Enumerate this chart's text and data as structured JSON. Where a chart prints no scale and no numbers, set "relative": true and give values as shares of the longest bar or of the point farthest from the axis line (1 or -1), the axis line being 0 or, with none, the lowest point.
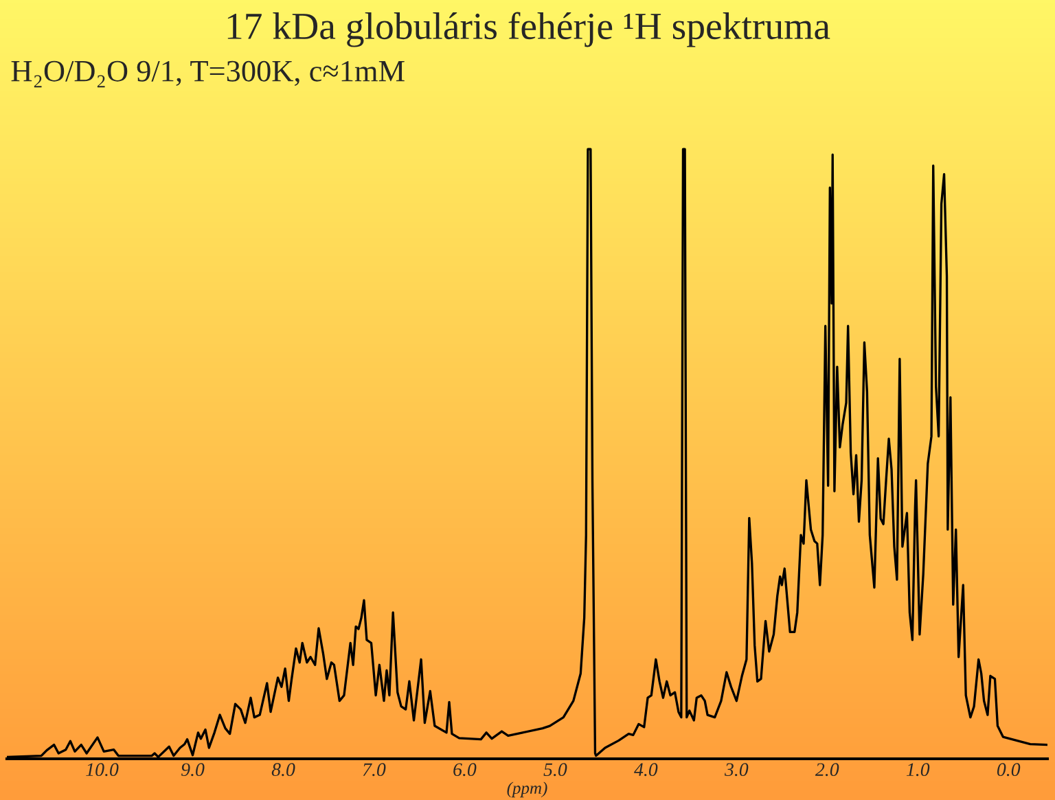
{
  "chart_data": {
    "type": "line",
    "title": "17 kDa globuláris fehérje ¹H spektruma",
    "subtitle": "H₂O/D₂O 9/1, T=300K, c≈1mM",
    "xlabel": "(ppm)",
    "relative": true,
    "grid": false,
    "legend": false,
    "marker": "none",
    "line_style": "solid",
    "tick_labels": "x",
    "xlim": [
      11.05,
      -0.43
    ],
    "xticks": [
      {
        "value": 10,
        "label": "10.0"
      },
      {
        "value": 9,
        "label": "9.0"
      },
      {
        "value": 8,
        "label": "8.0"
      },
      {
        "value": 7,
        "label": "7.0"
      },
      {
        "value": 6,
        "label": "6.0"
      },
      {
        "value": 5,
        "label": "5.0"
      },
      {
        "value": 4,
        "label": "4.0"
      },
      {
        "value": 3,
        "label": "3.0"
      },
      {
        "value": 2,
        "label": "2.0"
      },
      {
        "value": 1,
        "label": "1.0"
      },
      {
        "value": 0,
        "label": "0.0"
      }
    ],
    "series": [
      {
        "color": "#000000",
        "x": [
          11.05,
          10.67,
          10.61,
          10.53,
          10.48,
          10.4,
          10.35,
          10.3,
          10.23,
          10.17,
          10.05,
          9.98,
          9.87,
          9.82,
          9.45,
          9.42,
          9.38,
          9.26,
          9.21,
          9.14,
          9.09,
          9.06,
          9.0,
          8.94,
          8.91,
          8.86,
          8.82,
          8.76,
          8.7,
          8.64,
          8.59,
          8.53,
          8.47,
          8.42,
          8.36,
          8.32,
          8.26,
          8.18,
          8.14,
          8.06,
          8.02,
          7.98,
          7.94,
          7.91,
          7.86,
          7.82,
          7.79,
          7.74,
          7.7,
          7.65,
          7.61,
          7.56,
          7.52,
          7.47,
          7.44,
          7.38,
          7.33,
          7.26,
          7.23,
          7.2,
          7.17,
          7.14,
          7.11,
          7.08,
          7.03,
          6.98,
          6.94,
          6.89,
          6.86,
          6.83,
          6.79,
          6.74,
          6.7,
          6.65,
          6.61,
          6.56,
          6.48,
          6.44,
          6.38,
          6.33,
          6.2,
          6.17,
          6.14,
          6.06,
          5.82,
          5.76,
          5.7,
          5.59,
          5.52,
          5.36,
          5.14,
          5.06,
          4.91,
          4.8,
          4.72,
          4.68,
          4.66,
          4.64,
          4.61,
          4.59,
          4.56,
          4.55,
          4.45,
          4.3,
          4.19,
          4.14,
          4.08,
          4.02,
          3.98,
          3.94,
          3.89,
          3.85,
          3.81,
          3.77,
          3.73,
          3.68,
          3.64,
          3.61,
          3.59,
          3.57,
          3.55,
          3.52,
          3.47,
          3.44,
          3.39,
          3.35,
          3.32,
          3.24,
          3.17,
          3.11,
          3.06,
          3.0,
          2.94,
          2.89,
          2.86,
          2.83,
          2.8,
          2.77,
          2.73,
          2.68,
          2.64,
          2.59,
          2.55,
          2.52,
          2.5,
          2.47,
          2.41,
          2.36,
          2.33,
          2.29,
          2.26,
          2.23,
          2.18,
          2.14,
          2.11,
          2.08,
          2.05,
          2.02,
          1.99,
          1.97,
          1.95,
          1.94,
          1.92,
          1.89,
          1.86,
          1.83,
          1.79,
          1.77,
          1.74,
          1.71,
          1.68,
          1.65,
          1.62,
          1.59,
          1.56,
          1.53,
          1.48,
          1.44,
          1.41,
          1.38,
          1.35,
          1.32,
          1.29,
          1.26,
          1.23,
          1.2,
          1.17,
          1.12,
          1.09,
          1.06,
          1.03,
          1.02,
          0.98,
          0.94,
          0.89,
          0.85,
          0.83,
          0.8,
          0.77,
          0.74,
          0.71,
          0.68,
          0.67,
          0.64,
          0.61,
          0.58,
          0.55,
          0.5,
          0.47,
          0.42,
          0.38,
          0.33,
          0.3,
          0.27,
          0.23,
          0.2,
          0.15,
          0.12,
          0.06,
          -0.09,
          -0.24,
          -0.43
        ],
        "values": [
          0.003,
          0.005,
          0.014,
          0.023,
          0.009,
          0.015,
          0.029,
          0.012,
          0.023,
          0.009,
          0.035,
          0.012,
          0.015,
          0.005,
          0.005,
          0.009,
          0.003,
          0.02,
          0.005,
          0.018,
          0.024,
          0.032,
          0.006,
          0.043,
          0.033,
          0.048,
          0.018,
          0.043,
          0.072,
          0.05,
          0.041,
          0.09,
          0.081,
          0.059,
          0.1,
          0.068,
          0.072,
          0.124,
          0.077,
          0.133,
          0.118,
          0.148,
          0.095,
          0.129,
          0.181,
          0.158,
          0.19,
          0.158,
          0.167,
          0.154,
          0.214,
          0.172,
          0.131,
          0.158,
          0.154,
          0.095,
          0.104,
          0.19,
          0.154,
          0.217,
          0.213,
          0.231,
          0.26,
          0.195,
          0.19,
          0.104,
          0.154,
          0.095,
          0.145,
          0.104,
          0.24,
          0.109,
          0.086,
          0.081,
          0.127,
          0.063,
          0.163,
          0.059,
          0.111,
          0.054,
          0.043,
          0.093,
          0.041,
          0.034,
          0.032,
          0.043,
          0.033,
          0.045,
          0.038,
          0.043,
          0.05,
          0.054,
          0.068,
          0.095,
          0.14,
          0.231,
          0.367,
          1.0,
          1.0,
          0.457,
          0.009,
          0.005,
          0.018,
          0.03,
          0.041,
          0.039,
          0.057,
          0.052,
          0.1,
          0.104,
          0.163,
          0.127,
          0.1,
          0.127,
          0.104,
          0.109,
          0.077,
          0.068,
          1.0,
          1.0,
          0.068,
          0.079,
          0.063,
          0.1,
          0.104,
          0.095,
          0.072,
          0.068,
          0.095,
          0.142,
          0.118,
          0.095,
          0.136,
          0.163,
          0.395,
          0.321,
          0.186,
          0.127,
          0.131,
          0.226,
          0.176,
          0.204,
          0.267,
          0.299,
          0.285,
          0.312,
          0.208,
          0.208,
          0.24,
          0.367,
          0.353,
          0.457,
          0.376,
          0.357,
          0.353,
          0.285,
          0.367,
          0.71,
          0.448,
          0.937,
          0.747,
          0.991,
          0.439,
          0.643,
          0.511,
          0.548,
          0.584,
          0.71,
          0.502,
          0.434,
          0.498,
          0.389,
          0.457,
          0.683,
          0.602,
          0.367,
          0.281,
          0.493,
          0.394,
          0.385,
          0.457,
          0.525,
          0.475,
          0.348,
          0.294,
          0.656,
          0.348,
          0.403,
          0.24,
          0.195,
          0.412,
          0.457,
          0.204,
          0.303,
          0.484,
          0.529,
          0.973,
          0.611,
          0.529,
          0.91,
          0.959,
          0.792,
          0.376,
          0.593,
          0.253,
          0.376,
          0.167,
          0.285,
          0.104,
          0.068,
          0.086,
          0.163,
          0.14,
          0.095,
          0.072,
          0.136,
          0.131,
          0.054,
          0.036,
          0.03,
          0.024,
          0.023
        ]
      }
    ]
  }
}
